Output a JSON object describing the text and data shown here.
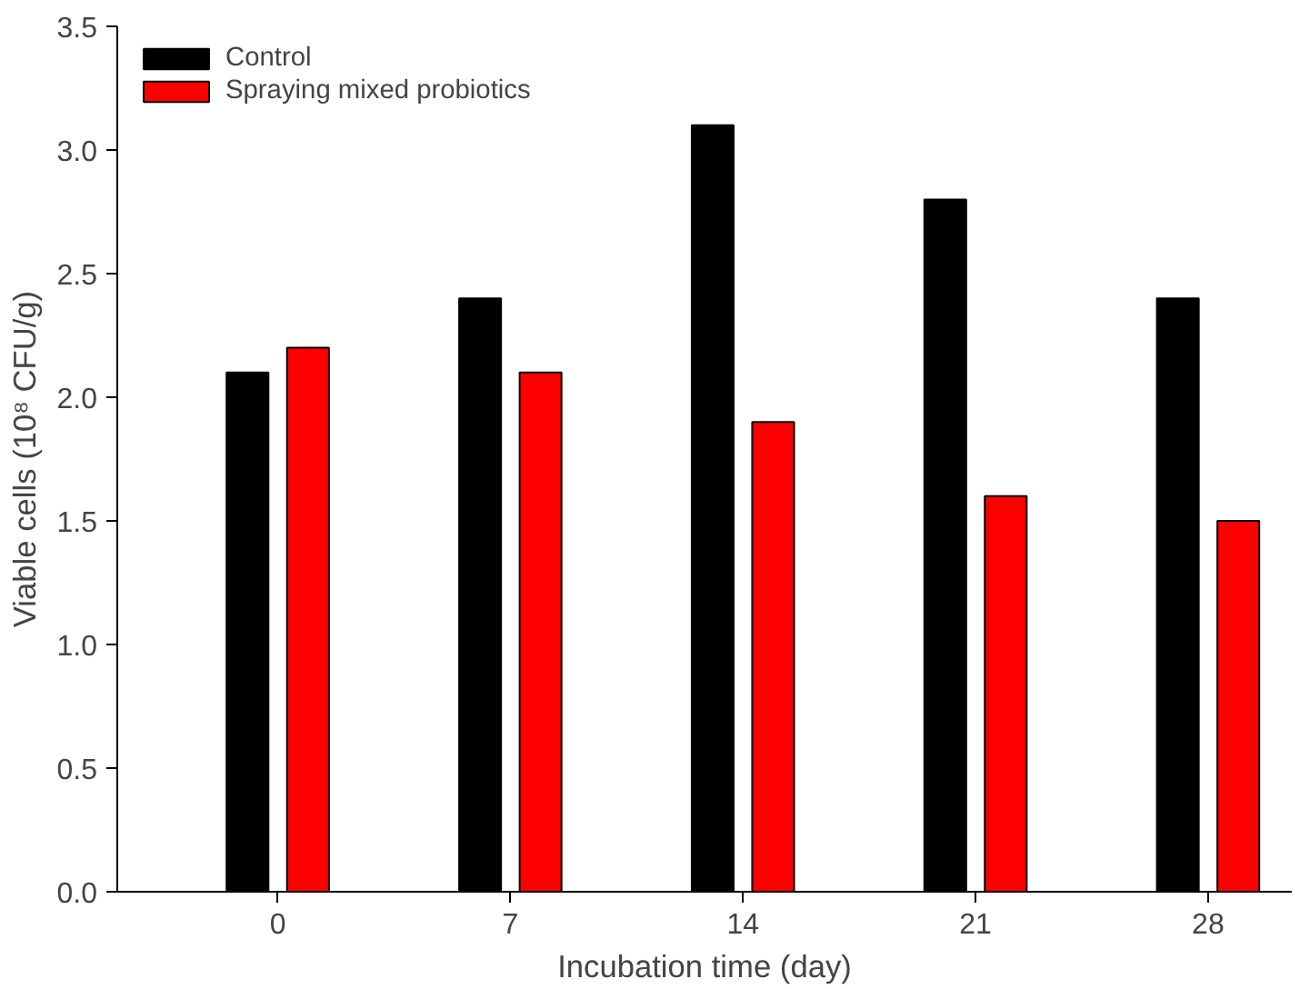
{
  "chart_data": {
    "type": "bar",
    "xlabel": "Incubation time (day)",
    "ylabel": "Viable cells (10⁸ CFU/g)",
    "categories": [
      "0",
      "7",
      "14",
      "21",
      "28"
    ],
    "series": [
      {
        "name": "Control",
        "color": "#000000",
        "values": [
          2.1,
          2.4,
          3.1,
          2.8,
          2.4
        ]
      },
      {
        "name": "Spraying mixed probiotics",
        "color": "#ff0000",
        "values": [
          2.2,
          2.1,
          1.9,
          1.6,
          1.5
        ]
      }
    ],
    "ylim": [
      0,
      3.5
    ],
    "yticks": [
      {
        "value": 0,
        "label": "0.0"
      },
      {
        "value": 0.5,
        "label": "0.5"
      },
      {
        "value": 1,
        "label": "1.0"
      },
      {
        "value": 1.5,
        "label": "1.5"
      },
      {
        "value": 2,
        "label": "2.0"
      },
      {
        "value": 2.5,
        "label": "2.5"
      },
      {
        "value": 3,
        "label": "3.0"
      },
      {
        "value": 3.5,
        "label": "3.5"
      }
    ],
    "grid": false,
    "legend": "top left"
  }
}
